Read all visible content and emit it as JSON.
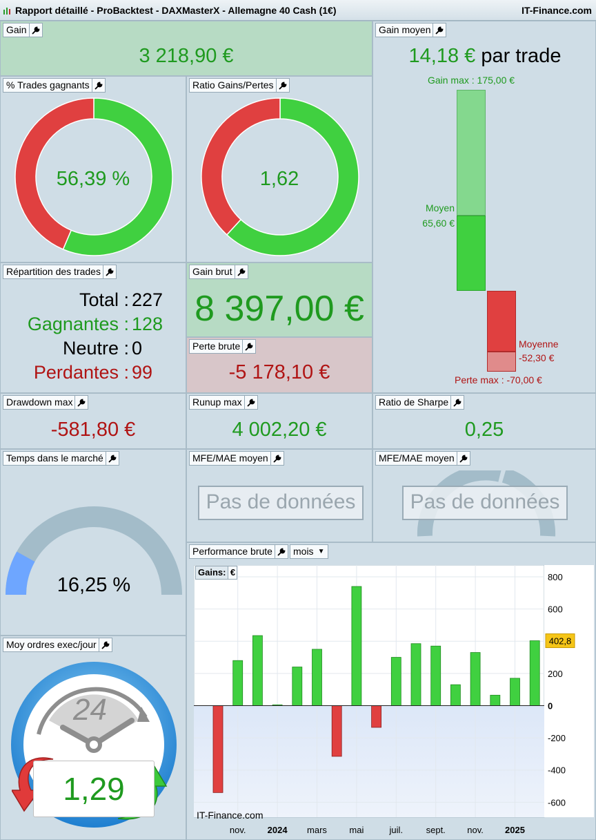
{
  "window": {
    "title": "Rapport détaillé - ProBacktest - DAXMasterX - Allemagne 40 Cash (1€)",
    "brand": "IT-Finance.com"
  },
  "colors": {
    "green": "#1f9a1f",
    "red": "#b01414",
    "bar_green": "#40d040",
    "bar_red": "#e04040"
  },
  "gain": {
    "label": "Gain",
    "value": "3 218,90 €"
  },
  "gain_moyen": {
    "label": "Gain moyen",
    "value": "14,18 €",
    "suffix": "par trade",
    "gain_max_label": "Gain max : 175,00 €",
    "moyen_label": "Moyen",
    "moyen_value": "65,60 €",
    "moyenne_label": "Moyenne",
    "moyenne_value": "-52,30 €",
    "perte_max_label": "Perte max : -70,00 €"
  },
  "trades_gagnants": {
    "label": "% Trades gagnants",
    "value": "56,39 %",
    "fraction": 0.5639
  },
  "ratio_gains_pertes": {
    "label": "Ratio Gains/Pertes",
    "value": "1,62",
    "fraction": 0.6184
  },
  "repartition": {
    "label": "Répartition des trades",
    "total_label": "Total :",
    "total": "227",
    "gagnantes_label": "Gagnantes :",
    "gagnantes": "128",
    "neutre_label": "Neutre :",
    "neutre": "0",
    "perdantes_label": "Perdantes :",
    "perdantes": "99"
  },
  "gain_brut": {
    "label": "Gain brut",
    "value": "8 397,00 €"
  },
  "perte_brute": {
    "label": "Perte brute",
    "value": "-5 178,10 €"
  },
  "drawdown": {
    "label": "Drawdown max",
    "value": "-581,80 €"
  },
  "runup": {
    "label": "Runup max",
    "value": "4 002,20 €"
  },
  "sharpe": {
    "label": "Ratio de Sharpe",
    "value": "0,25"
  },
  "temps_marche": {
    "label": "Temps dans le marché",
    "value": "16,25 %",
    "fraction": 0.1625
  },
  "mfe_mae_1": {
    "label": "MFE/MAE moyen",
    "nodata": "Pas de données"
  },
  "mfe_mae_2": {
    "label": "MFE/MAE moyen",
    "nodata": "Pas de données"
  },
  "moy_ordres": {
    "label": "Moy ordres exec/jour",
    "clock_value": "24",
    "value": "1,29"
  },
  "performance": {
    "label": "Performance brute",
    "period_select": "mois",
    "legend_label": "Gains:",
    "legend_unit": "€",
    "watermark": "IT-Finance.com",
    "last_value_tag": "402,8"
  },
  "chart_data": {
    "type": "bar",
    "title": "Performance brute",
    "values": [
      -540,
      280,
      435,
      5,
      240,
      350,
      -315,
      740,
      -135,
      300,
      385,
      370,
      130,
      330,
      65,
      170,
      403
    ],
    "ylim": [
      -650,
      800
    ],
    "yticks": [
      "800",
      "600",
      "400",
      "200",
      "0",
      "-200",
      "-400",
      "-600"
    ],
    "ytick_values": [
      800,
      600,
      400,
      200,
      0,
      -200,
      -400,
      -600
    ],
    "xticks": [
      {
        "label": "nov.",
        "index": 1,
        "bold": false
      },
      {
        "label": "2024",
        "index": 3,
        "bold": true
      },
      {
        "label": "mars",
        "index": 5,
        "bold": false
      },
      {
        "label": "mai",
        "index": 7,
        "bold": false
      },
      {
        "label": "juil.",
        "index": 9,
        "bold": false
      },
      {
        "label": "sept.",
        "index": 11,
        "bold": false
      },
      {
        "label": "nov.",
        "index": 13,
        "bold": false
      },
      {
        "label": "2025",
        "index": 15,
        "bold": true
      }
    ],
    "grid": true
  }
}
